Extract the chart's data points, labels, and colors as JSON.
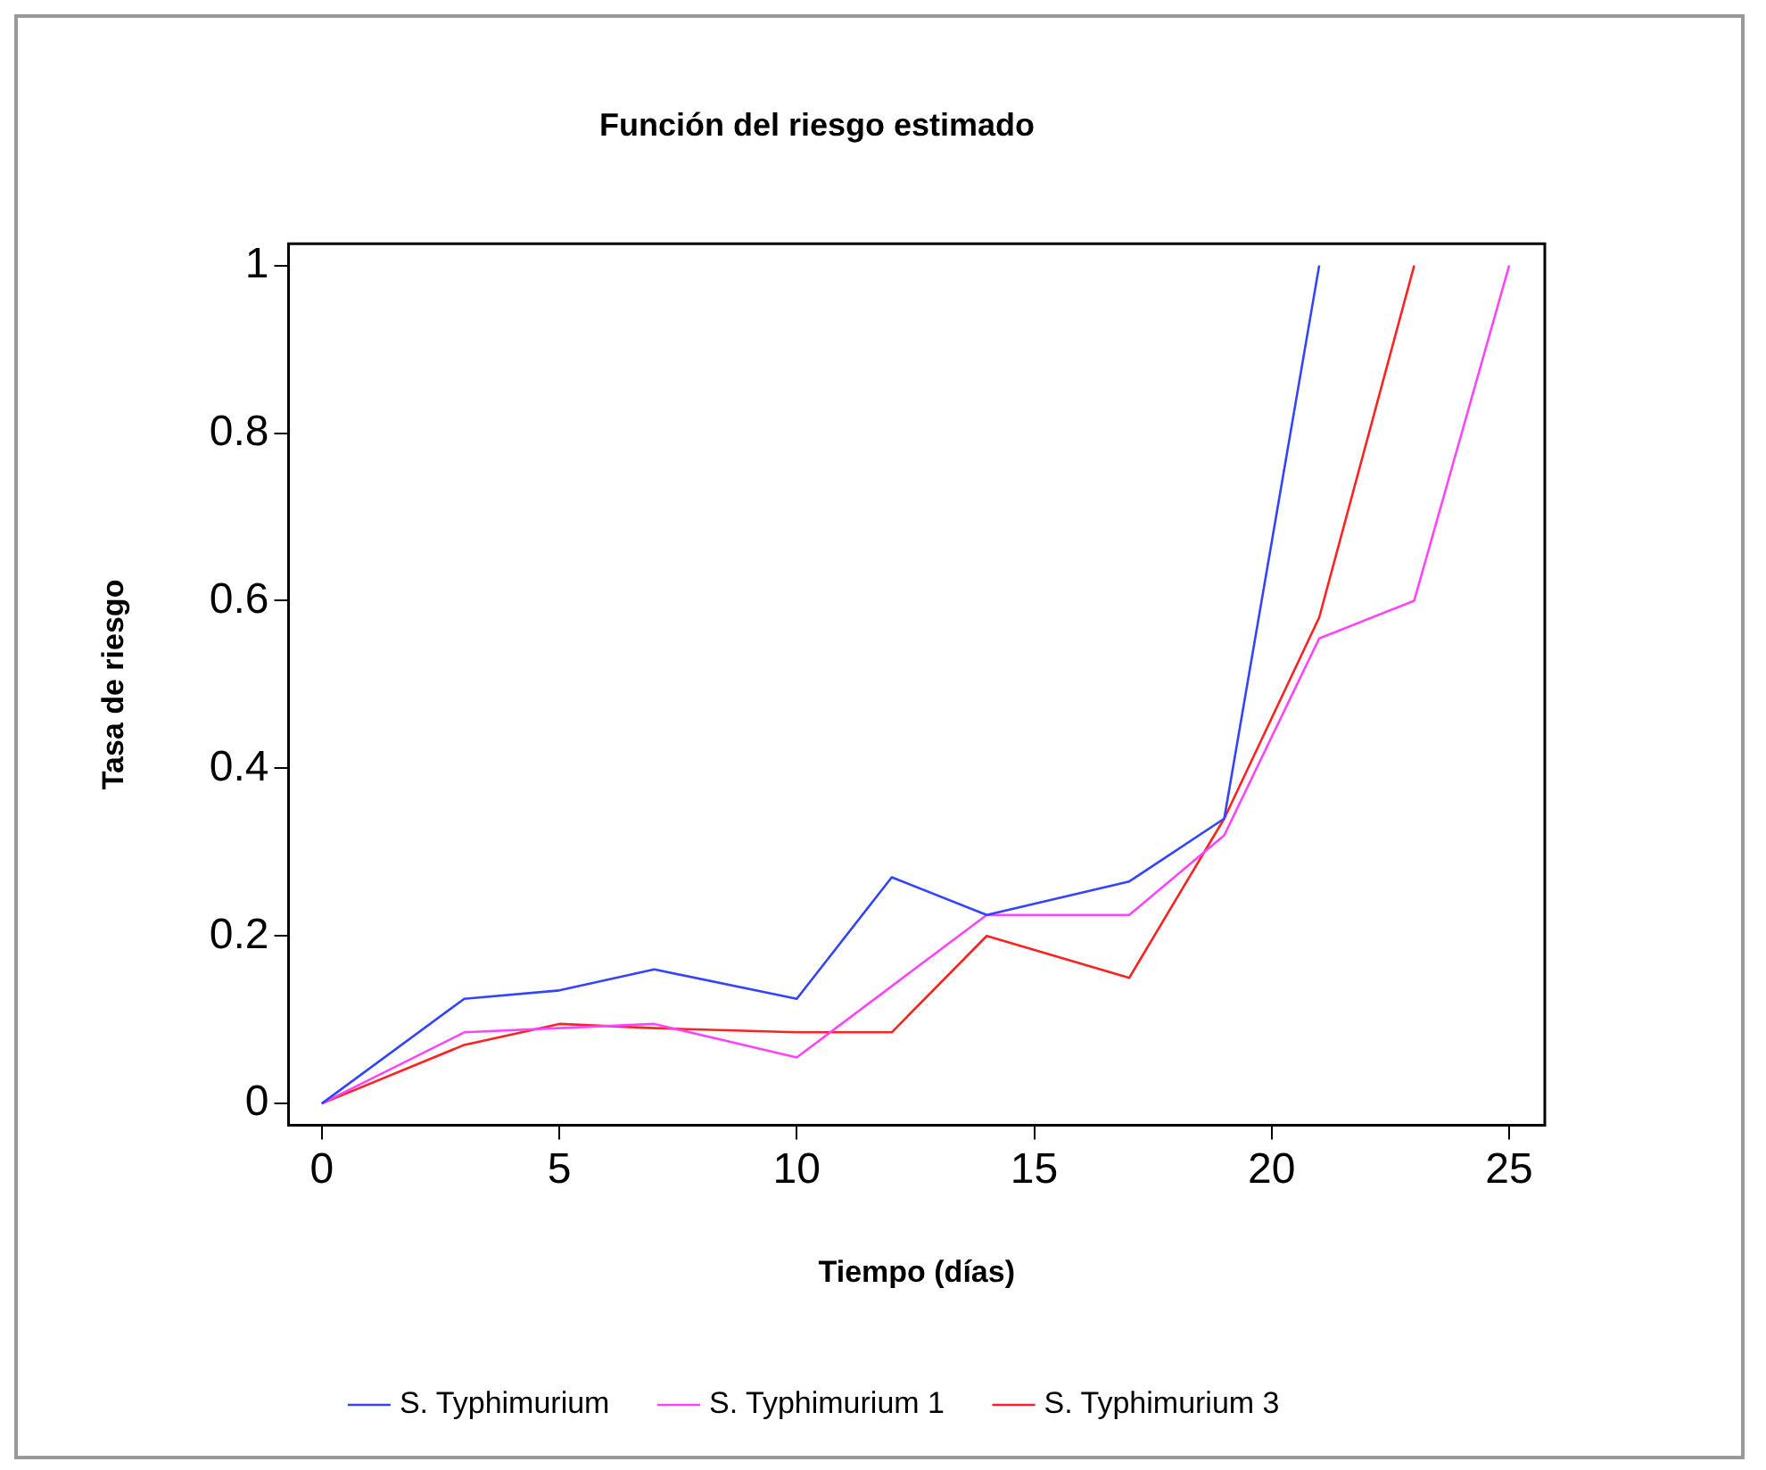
{
  "chart_data": {
    "type": "line",
    "title": "Función del riesgo estimado",
    "xlabel": "Tiempo (días)",
    "ylabel": "Tasa de riesgo",
    "xlim": [
      -0.7,
      25.75
    ],
    "ylim": [
      -0.026,
      1.026
    ],
    "xticks": [
      0,
      5,
      10,
      15,
      20,
      25
    ],
    "yticks": [
      0,
      0.2,
      0.4,
      0.6,
      0.8,
      1
    ],
    "grid": false,
    "legend": "bottom",
    "marker": "none",
    "line_style": "solid",
    "series": [
      {
        "name": "S. Typhimurium",
        "color": "#3344ff",
        "x": [
          0,
          3,
          5,
          7,
          10,
          12,
          14,
          17,
          19,
          21
        ],
        "values": [
          0,
          0.125,
          0.135,
          0.16,
          0.125,
          0.27,
          0.225,
          0.265,
          0.34,
          1.0
        ]
      },
      {
        "name": "S. Typhimurium 1",
        "color": "#ff44ff",
        "x": [
          0,
          3,
          5,
          7,
          10,
          12,
          14,
          17,
          19,
          21,
          23,
          25
        ],
        "values": [
          0,
          0.085,
          0.09,
          0.095,
          0.055,
          0.14,
          0.225,
          0.225,
          0.32,
          0.555,
          0.6,
          1.0
        ]
      },
      {
        "name": "S. Typhimurium 3",
        "color": "#ff2222",
        "x": [
          0,
          3,
          5,
          7,
          10,
          12,
          14,
          17,
          19,
          21,
          23
        ],
        "values": [
          0,
          0.07,
          0.095,
          0.09,
          0.085,
          0.085,
          0.2,
          0.15,
          0.34,
          0.58,
          1.0
        ]
      }
    ]
  }
}
